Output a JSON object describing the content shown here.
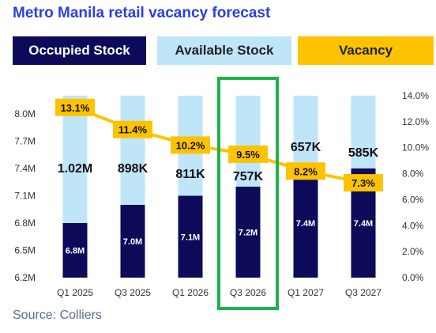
{
  "title": "Metro Manila retail vacancy forecast",
  "legend": {
    "occupied": "Occupied Stock",
    "available": "Available Stock",
    "vacancy": "Vacancy"
  },
  "source": "Source: Colliers",
  "colors": {
    "title": "#2b3ee6",
    "occupied": "#0e0a5a",
    "available": "#bfe5f8",
    "vacancy": "#fdc300",
    "highlight": "#1db34a"
  },
  "chart_data": {
    "type": "bar",
    "stacked": true,
    "categories": [
      "Q1 2025",
      "Q3 2025",
      "Q1 2026",
      "Q3 2026",
      "Q1 2027",
      "Q3 2027"
    ],
    "series": [
      {
        "name": "Occupied Stock",
        "values": [
          6.8,
          7.0,
          7.1,
          7.2,
          7.4,
          7.4
        ],
        "labels": [
          "6.8M",
          "7.0M",
          "7.1M",
          "7.2M",
          "7.4M",
          "7.4M"
        ]
      },
      {
        "name": "Available Stock",
        "values": [
          1.02,
          0.898,
          0.811,
          0.757,
          0.657,
          0.585
        ],
        "labels": [
          "1.02M",
          "898K",
          "811K",
          "757K",
          "657K",
          "585K"
        ]
      }
    ],
    "line_series": {
      "name": "Vacancy",
      "values": [
        13.1,
        11.4,
        10.2,
        9.5,
        8.2,
        7.3
      ],
      "labels": [
        "13.1%",
        "11.4%",
        "10.2%",
        "9.5%",
        "8.2%",
        "7.3%"
      ]
    },
    "y_left": {
      "ticks": [
        "8.0M",
        "7.7M",
        "7.4M",
        "7.1M",
        "6.8M",
        "6.5M",
        "6.2M"
      ],
      "tick_values": [
        8.0,
        7.7,
        7.4,
        7.1,
        6.8,
        6.5,
        6.2
      ],
      "ylim": [
        6.2,
        8.2
      ]
    },
    "y_right": {
      "ticks": [
        "14.0%",
        "12.0%",
        "10.0%",
        "8.0%",
        "6.0%",
        "4.0%",
        "2.0%",
        "0.0%"
      ],
      "tick_values": [
        14,
        12,
        10,
        8,
        6,
        4,
        2,
        0
      ],
      "ylim": [
        0,
        14
      ]
    },
    "highlighted_category": "Q3 2026",
    "grid": false,
    "legend_position": "top"
  }
}
